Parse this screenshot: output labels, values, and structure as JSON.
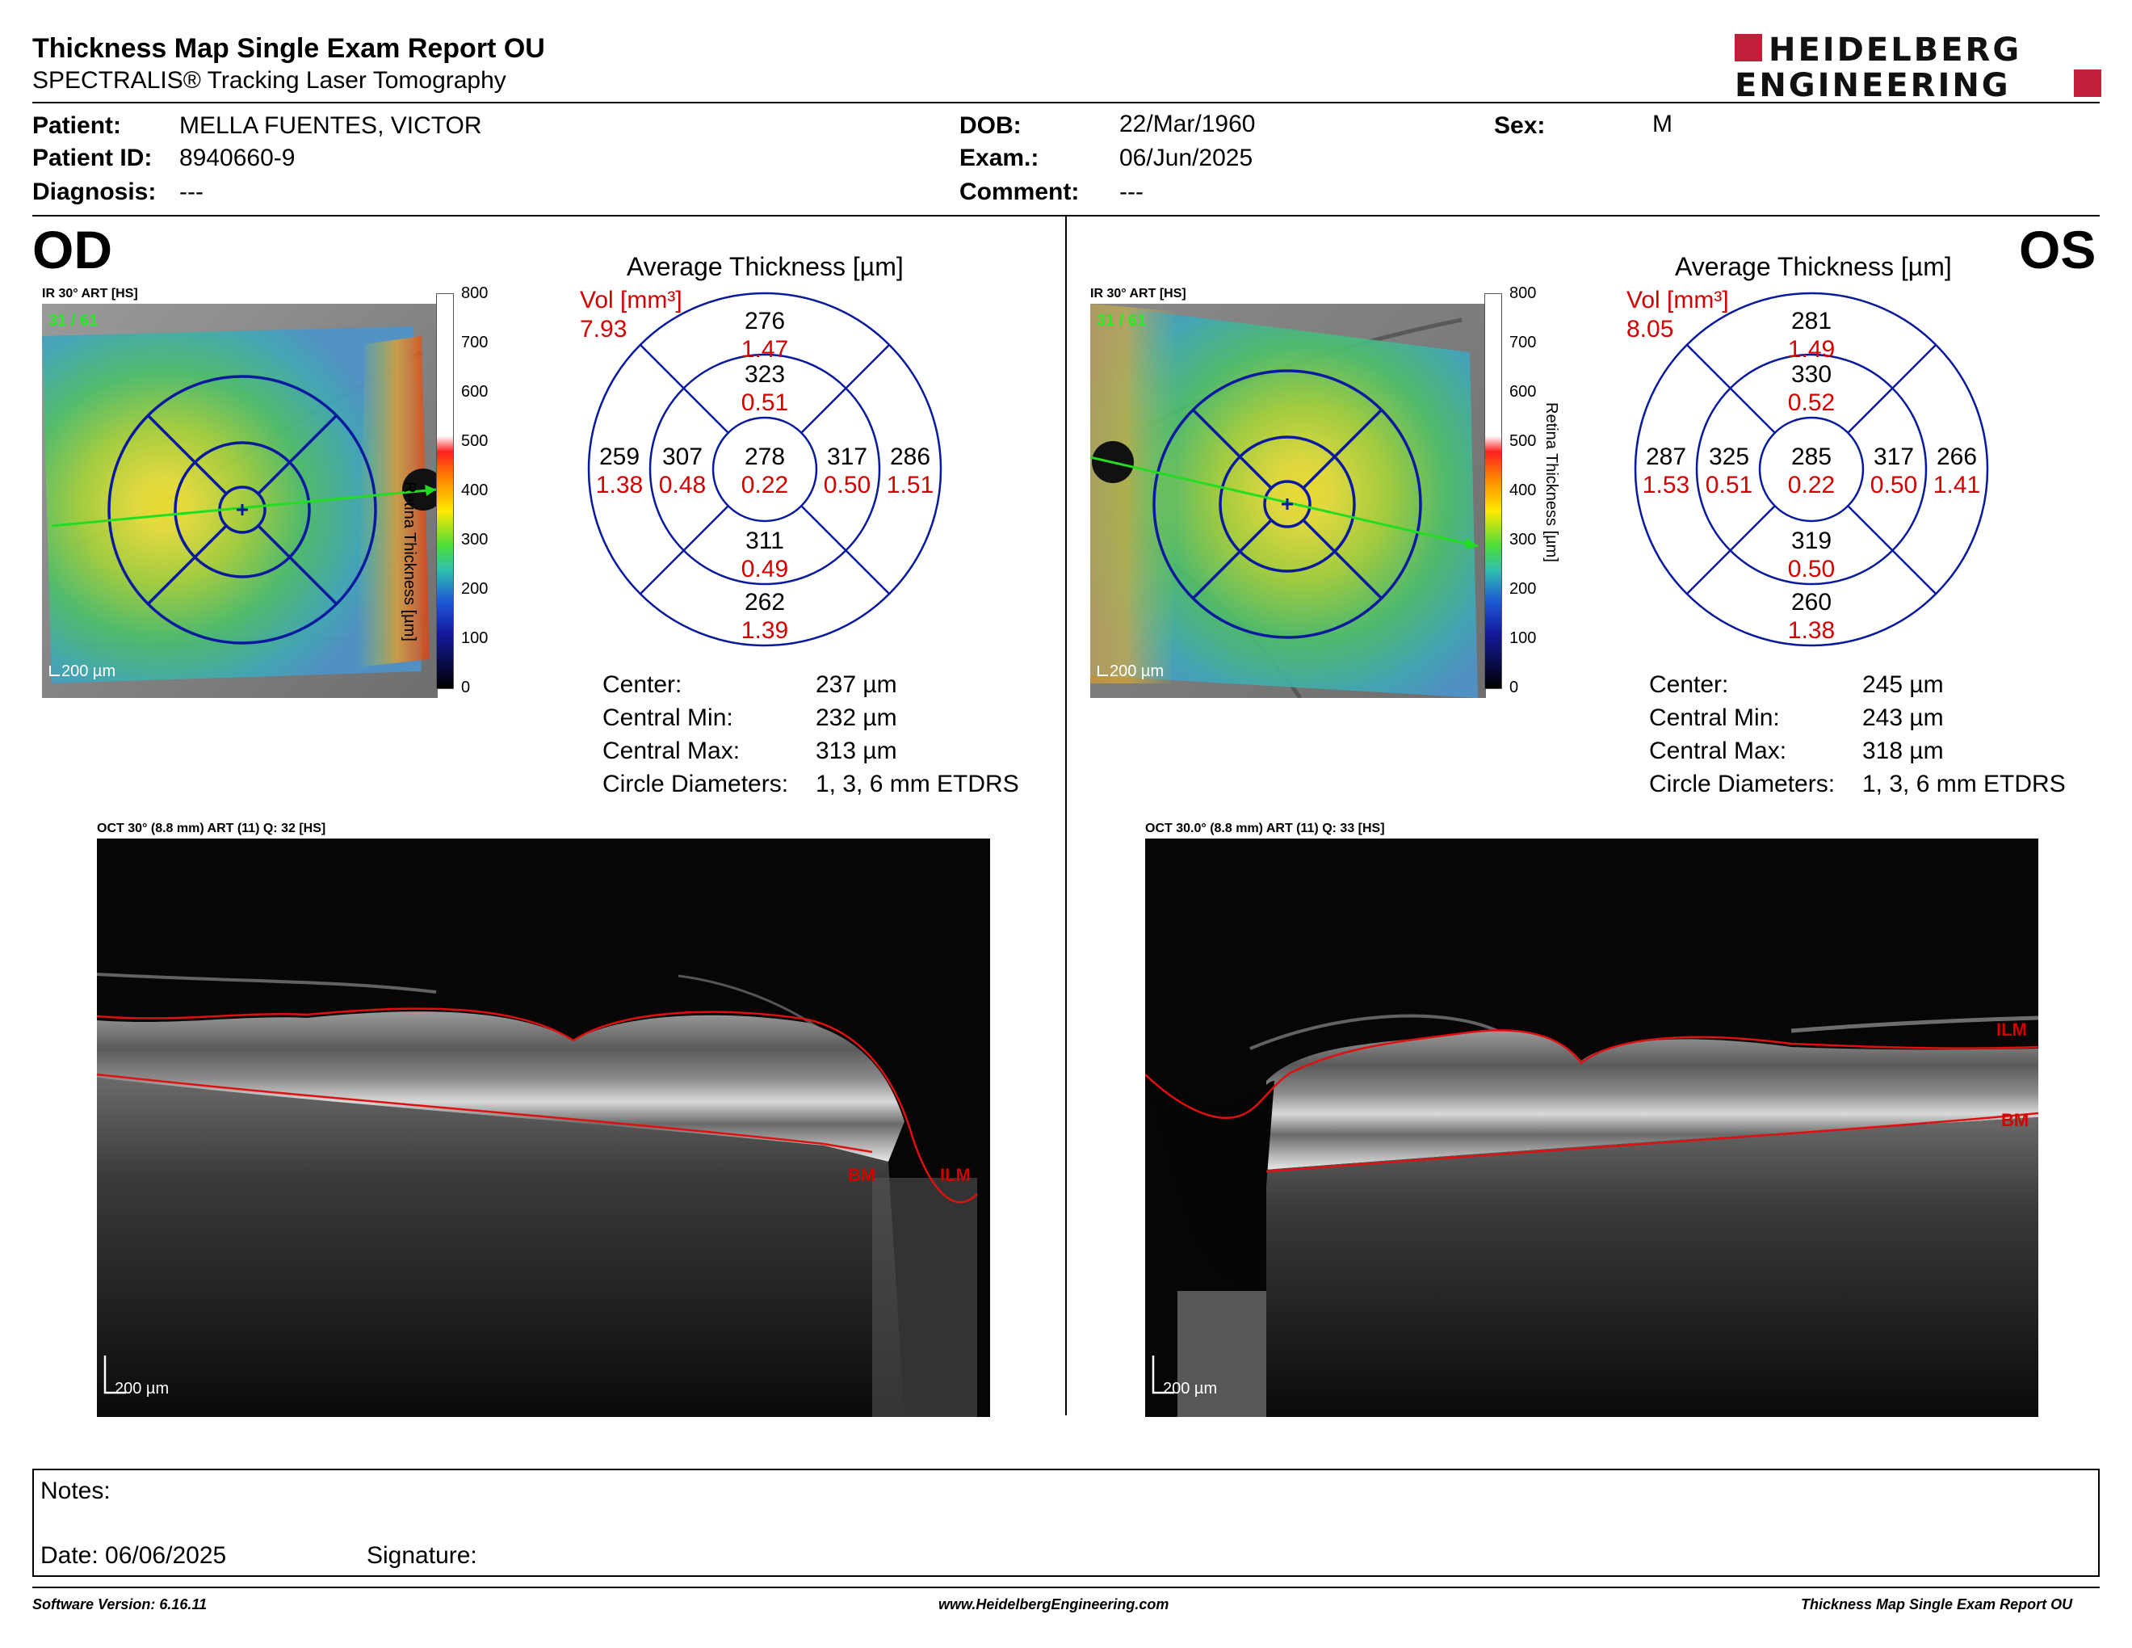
{
  "header": {
    "title": "Thickness Map Single Exam Report OU",
    "subtitle": "SPECTRALIS® Tracking Laser Tomography",
    "brand_line1": "HEIDELBERG",
    "brand_line2": "ENGINEERING",
    "brand_color": "#c0203a"
  },
  "patient": {
    "patient_label": "Patient:",
    "patient_value": "MELLA FUENTES, VICTOR",
    "id_label": "Patient ID:",
    "id_value": "8940660-9",
    "diagnosis_label": "Diagnosis:",
    "diagnosis_value": "---",
    "dob_label": "DOB:",
    "dob_value": "22/Mar/1960",
    "exam_label": "Exam.:",
    "exam_value": "06/Jun/2025",
    "comment_label": "Comment:",
    "comment_value": "---",
    "sex_label": "Sex:",
    "sex_value": "M"
  },
  "od": {
    "eye": "OD",
    "map_title": "IR 30° ART [HS]",
    "map_counter": "31 / 61",
    "map_scale": "200 µm",
    "colorbar_ticks": [
      "800",
      "700",
      "600",
      "500",
      "400",
      "300",
      "200",
      "100",
      "0"
    ],
    "colorbar_label": "Retina Thickness [µm]",
    "chart_title": "Average Thickness [µm]",
    "vol_label": "Vol [mm³]",
    "vol_value": "7.93",
    "sectors": {
      "outer_sup": {
        "t": "276",
        "v": "1.47"
      },
      "inner_sup": {
        "t": "323",
        "v": "0.51"
      },
      "outer_left": {
        "t": "259",
        "v": "1.38"
      },
      "inner_left": {
        "t": "307",
        "v": "0.48"
      },
      "center": {
        "t": "278",
        "v": "0.22"
      },
      "inner_right": {
        "t": "317",
        "v": "0.50"
      },
      "outer_right": {
        "t": "286",
        "v": "1.51"
      },
      "inner_inf": {
        "t": "311",
        "v": "0.49"
      },
      "outer_inf": {
        "t": "262",
        "v": "1.39"
      }
    },
    "stats": [
      {
        "label": "Center:",
        "value": "237 µm"
      },
      {
        "label": "Central Min:",
        "value": "232 µm"
      },
      {
        "label": "Central Max:",
        "value": "313 µm"
      },
      {
        "label": "Circle Diameters:",
        "value": "1, 3, 6 mm ETDRS"
      }
    ],
    "scan_title": "OCT 30° (8.8 mm) ART (11) Q: 32 [HS]",
    "scan_scale": "200 µm",
    "label_bm": "BM",
    "label_ilm": "ILM"
  },
  "os": {
    "eye": "OS",
    "map_title": "IR 30° ART [HS]",
    "map_counter": "31 / 61",
    "map_scale": "200 µm",
    "colorbar_ticks": [
      "800",
      "700",
      "600",
      "500",
      "400",
      "300",
      "200",
      "100",
      "0"
    ],
    "colorbar_label": "Retina Thickness [µm]",
    "chart_title": "Average Thickness [µm]",
    "vol_label": "Vol [mm³]",
    "vol_value": "8.05",
    "sectors": {
      "outer_sup": {
        "t": "281",
        "v": "1.49"
      },
      "inner_sup": {
        "t": "330",
        "v": "0.52"
      },
      "outer_left": {
        "t": "287",
        "v": "1.53"
      },
      "inner_left": {
        "t": "325",
        "v": "0.51"
      },
      "center": {
        "t": "285",
        "v": "0.22"
      },
      "inner_right": {
        "t": "317",
        "v": "0.50"
      },
      "outer_right": {
        "t": "266",
        "v": "1.41"
      },
      "inner_inf": {
        "t": "319",
        "v": "0.50"
      },
      "outer_inf": {
        "t": "260",
        "v": "1.38"
      }
    },
    "stats": [
      {
        "label": "Center:",
        "value": "245 µm"
      },
      {
        "label": "Central Min:",
        "value": "243 µm"
      },
      {
        "label": "Central Max:",
        "value": "318 µm"
      },
      {
        "label": "Circle Diameters:",
        "value": "1, 3, 6 mm ETDRS"
      }
    ],
    "scan_title": "OCT 30.0° (8.8 mm) ART (11) Q: 33 [HS]",
    "scan_scale": "200 µm",
    "label_ilm": "ILM",
    "label_bm": "BM"
  },
  "notes": {
    "notes_label": "Notes:",
    "date_label": "Date: 06/06/2025",
    "signature_label": "Signature:"
  },
  "footer": {
    "software": "Software Version: 6.16.11",
    "website": "www.HeidelbergEngineering.com",
    "report": "Thickness Map Single Exam Report OU"
  },
  "colors": {
    "etdrs_grid": "#0a1a9e",
    "values_red": "#d40000",
    "scan_line": "#22dd22"
  }
}
